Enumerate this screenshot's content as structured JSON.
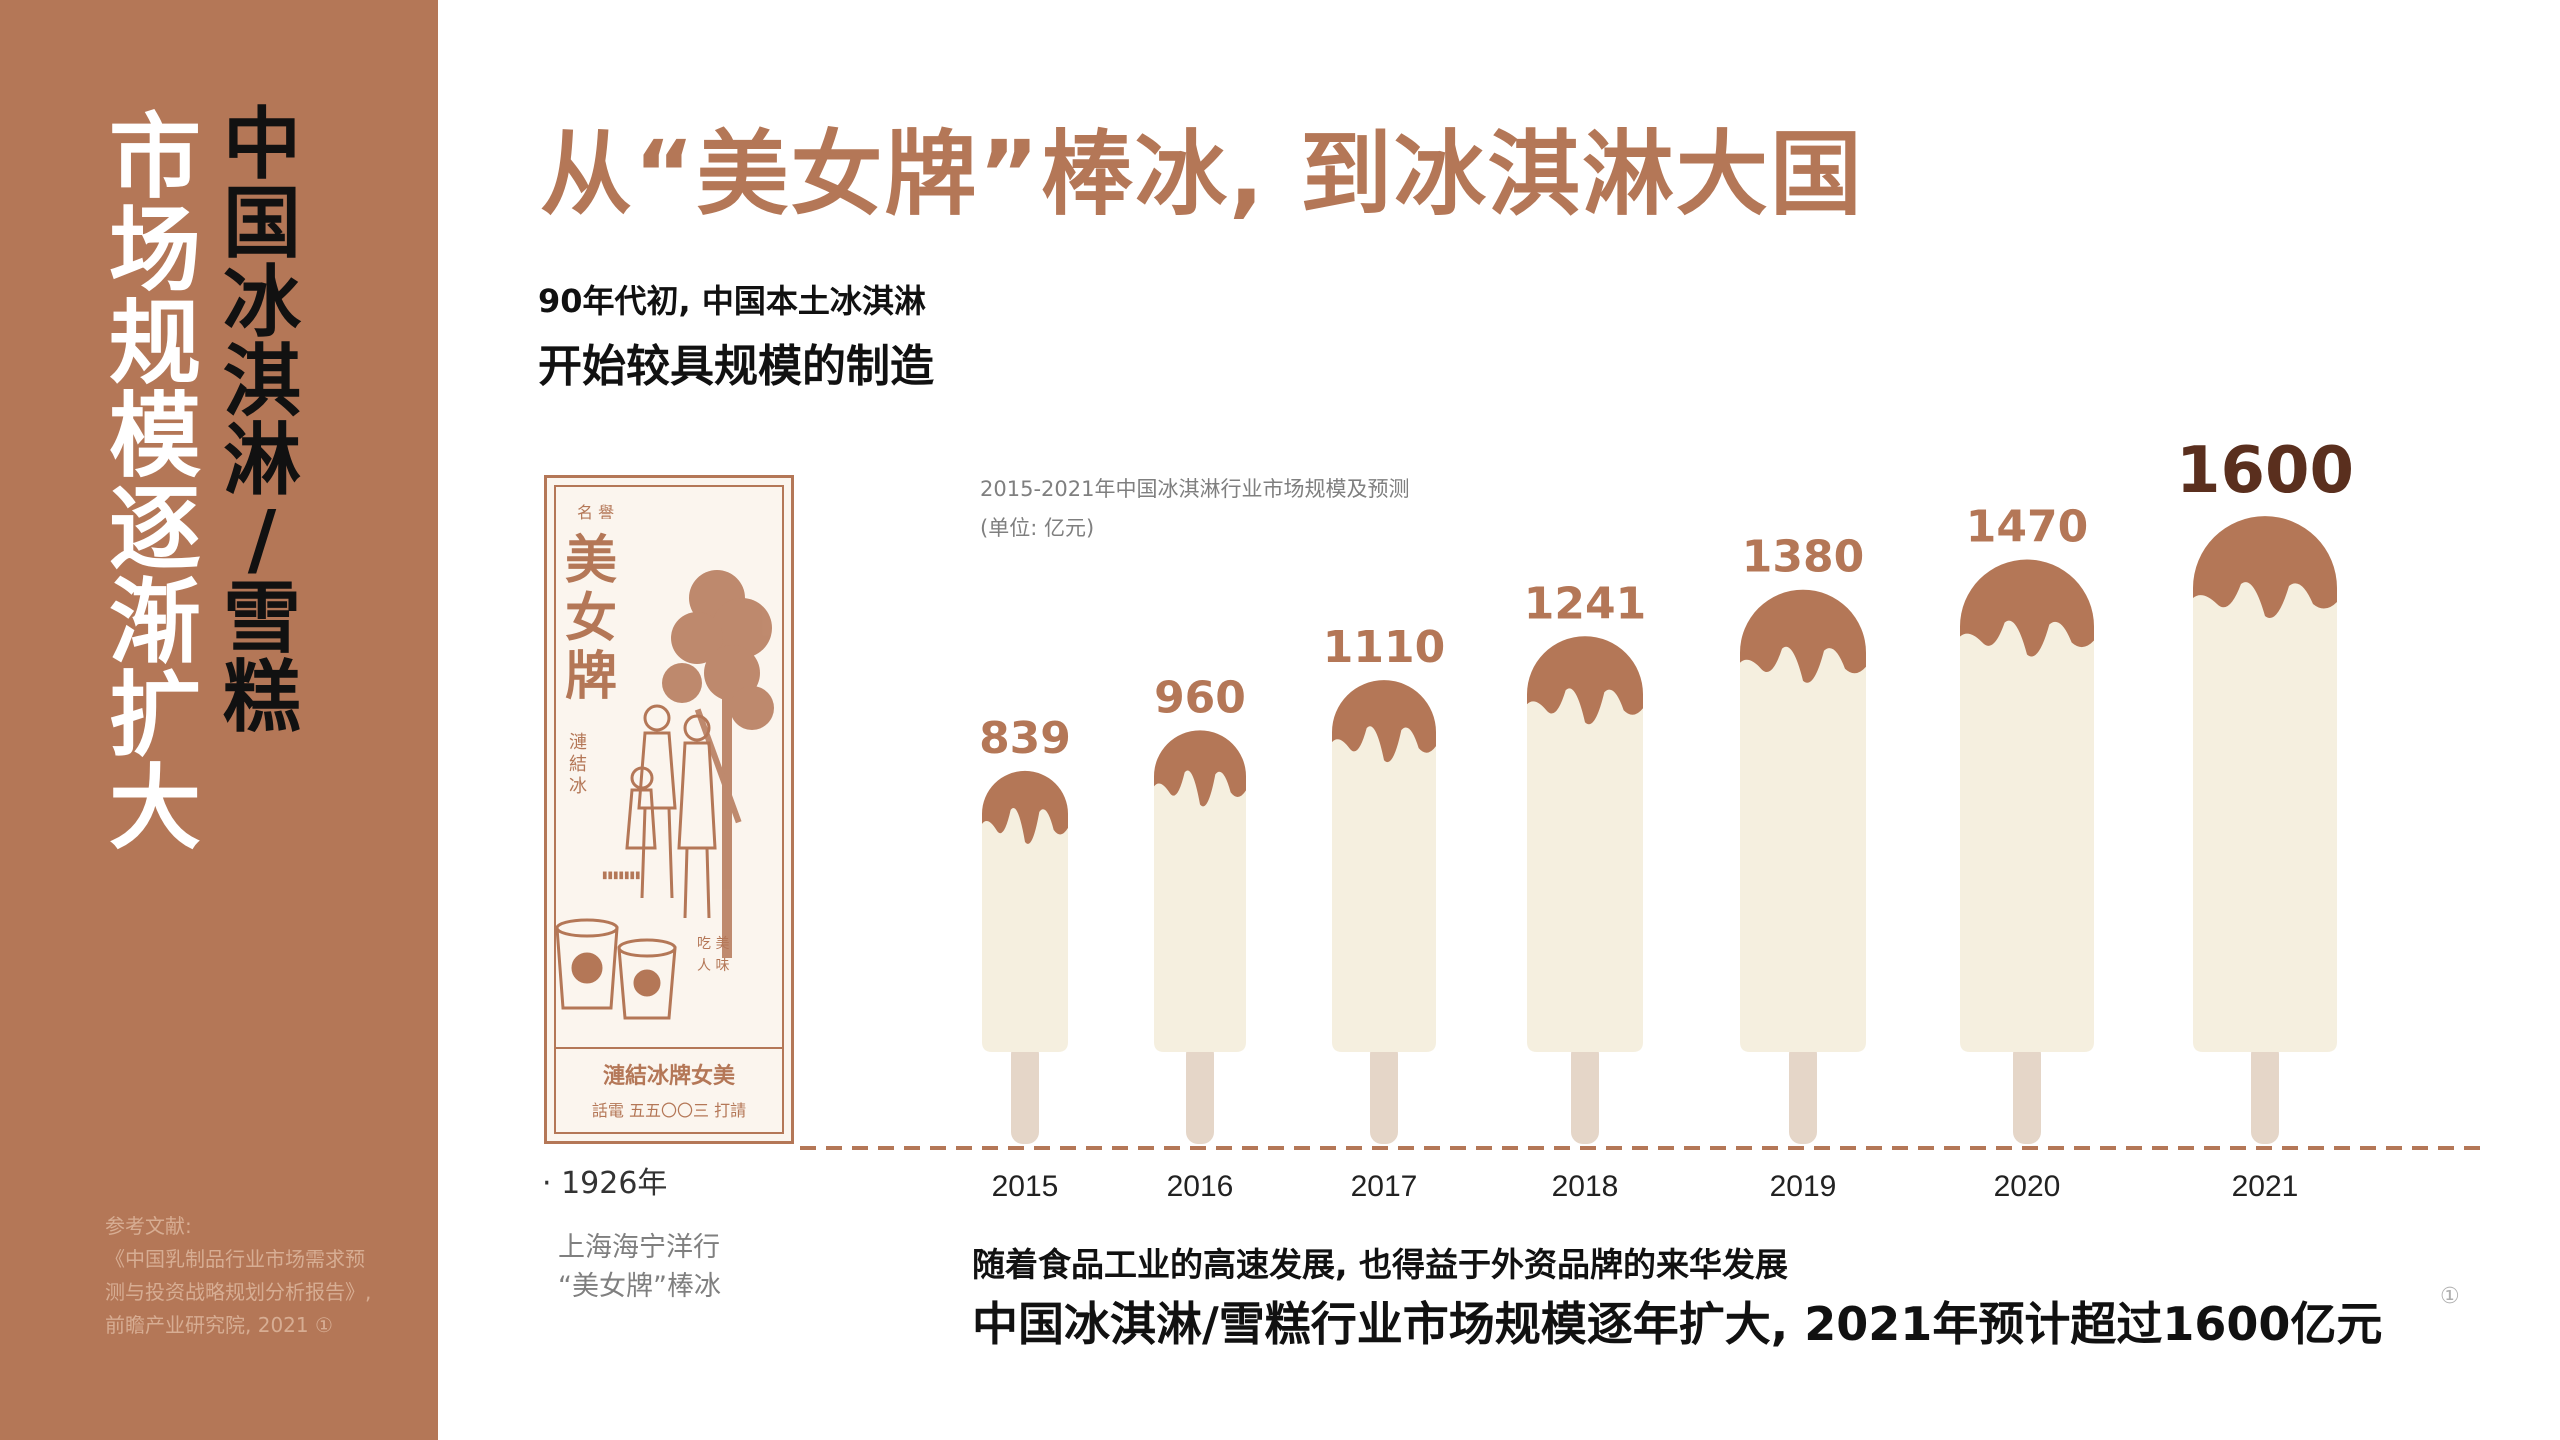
{
  "sidebar": {
    "vertical_title": [
      "市",
      "场",
      "规",
      "模",
      "逐",
      "渐",
      "扩",
      "大"
    ],
    "vertical_subtitle": [
      "中",
      "国",
      "冰",
      "淇",
      "淋",
      "/",
      "雪",
      "糕"
    ],
    "references": {
      "label": "参考文献:",
      "lines": [
        "《中国乳制品行业市场需求预",
        "测与投资战略规划分析报告》,",
        "前瞻产业研究院, 2021 ①"
      ]
    }
  },
  "main_title": "从“美女牌”棒冰, 到冰淇淋大国",
  "intro": {
    "line1": "90年代初, 中国本土冰淇淋",
    "line2": "开始较具规模的制造"
  },
  "poster": {
    "year": "· 1926年",
    "caption_line1": "上海海宁洋行",
    "caption_line2": "“美女牌”棒冰",
    "lettering": {
      "top": "名 譽",
      "brand": "美女牌",
      "side": "漣 結 冰",
      "bottom_1": "漣結冰牌女美",
      "bottom_2": "話電 五五〇〇三 打請"
    }
  },
  "chart_caption": {
    "title": "2015-2021年中国冰淇淋行业市场规模及预测",
    "unit": "(单位: 亿元)"
  },
  "chart_data": {
    "type": "bar",
    "title": "2015-2021年中国冰淇淋行业市场规模及预测",
    "unit": "(单位: 亿元)",
    "categories": [
      "2015",
      "2016",
      "2017",
      "2018",
      "2019",
      "2020",
      "2021"
    ],
    "values": [
      839,
      960,
      1110,
      1241,
      1380,
      1470,
      1600
    ],
    "highlight_index": 6,
    "ylim": [
      0,
      1600
    ],
    "grid": false,
    "style": "ice-cream-bar pictogram"
  },
  "bottom": {
    "line1": "随着食品工业的高速发展, 也得益于外资品牌的来华发展",
    "line2": "中国冰淇淋/雪糕行业市场规模逐年扩大, 2021年预计超过1600亿元",
    "footnote_mark": "①"
  },
  "colors": {
    "brand": "#b47757",
    "dark_label": "#5a2f1e",
    "bar_body": "#f5efdf",
    "stick": "#e5d6c8"
  }
}
